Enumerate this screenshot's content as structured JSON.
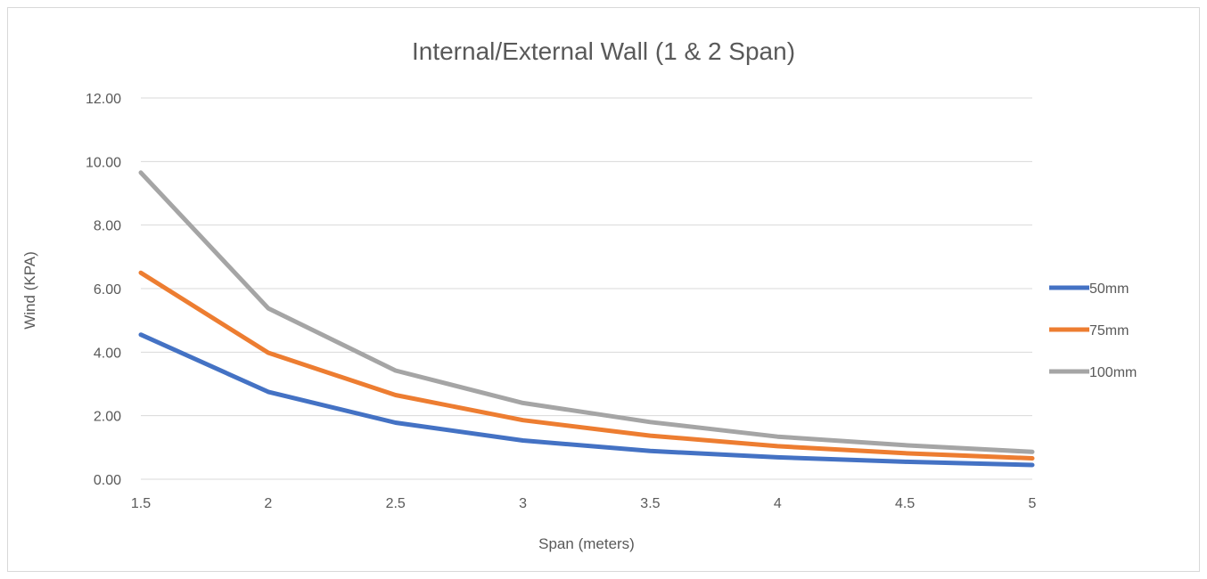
{
  "chart_data": {
    "type": "line",
    "title": "Internal/External Wall (1 & 2 Span)",
    "xlabel": "Span (meters)",
    "ylabel": "Wind (KPA)",
    "x": [
      "1.5",
      "2",
      "2.5",
      "3",
      "3.5",
      "4",
      "4.5",
      "5"
    ],
    "x_values": [
      1.5,
      2,
      2.5,
      3,
      3.5,
      4,
      4.5,
      5
    ],
    "ylim": [
      0,
      12
    ],
    "y_ticks": [
      "0.00",
      "2.00",
      "4.00",
      "6.00",
      "8.00",
      "10.00",
      "12.00"
    ],
    "y_tick_values": [
      0,
      2,
      4,
      6,
      8,
      10,
      12
    ],
    "grid": true,
    "legend_position": "right",
    "series": [
      {
        "name": "50mm",
        "color": "#4472C4",
        "values": [
          4.55,
          2.75,
          1.78,
          1.22,
          0.89,
          0.69,
          0.55,
          0.45
        ]
      },
      {
        "name": "75mm",
        "color": "#ED7D31",
        "values": [
          6.5,
          3.98,
          2.65,
          1.86,
          1.37,
          1.04,
          0.82,
          0.66
        ]
      },
      {
        "name": "100mm",
        "color": "#A5A5A5",
        "values": [
          9.65,
          5.38,
          3.42,
          2.4,
          1.8,
          1.34,
          1.07,
          0.86
        ]
      }
    ]
  }
}
